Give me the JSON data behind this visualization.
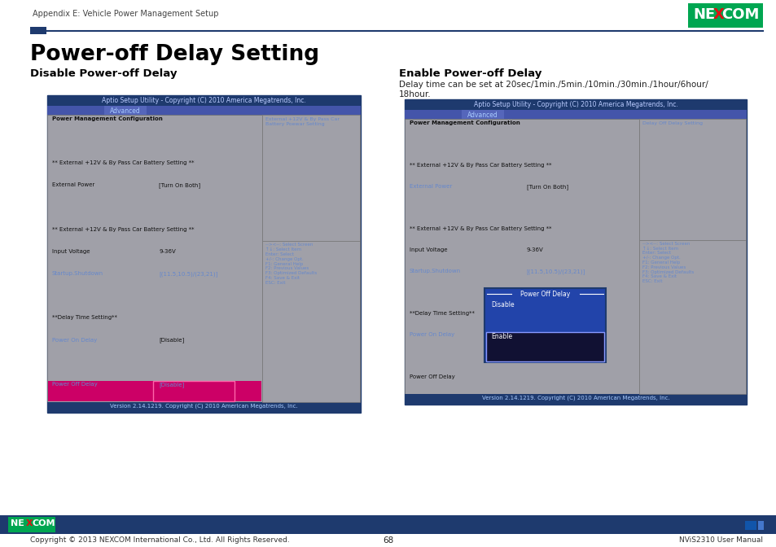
{
  "page_header": "Appendix E: Vehicle Power Management Setup",
  "main_title": "Power-off Delay Setting",
  "left_subtitle": "Disable Power-off Delay",
  "right_subtitle": "Enable Power-off Delay",
  "right_desc": "Delay time can be set at 20sec/1min./5min./10min./30min./1hour/6hour/\n18hour.",
  "bios_title": "Aptio Setup Utility - Copyright (C) 2010 America Megatrends, Inc.",
  "bios_tab": "Advanced",
  "bios_version": "Version 2.14.1219. Copyright (C) 2010 American Megatrends, Inc.",
  "left_screen": {
    "right_panel_top": "External +12V & By Pass Car\nBattery Poewar Setting",
    "right_panel_bottom": "--><--: Select Screen\n↑↓: Select Item\nEnter: Select\n+/-: Change Opt.\nF1: General Help\nF2: Previous Values\nF3: Optimized Defaults\nF4: Save & Exit\nESC: Exit",
    "content_rows": [
      {
        "label": "Power Management Configuration",
        "value": "",
        "label_color": "black",
        "value_color": "black",
        "bold": true,
        "gap_after": false
      },
      {
        "label": "",
        "value": "",
        "label_color": "black",
        "value_color": "black",
        "bold": false,
        "gap_after": false
      },
      {
        "label": "** External +12V & By Pass Car Battery Setting **",
        "value": "",
        "label_color": "black",
        "value_color": "black",
        "bold": false,
        "gap_after": false
      },
      {
        "label": "External Power",
        "value": "[Turn On Both]",
        "label_color": "black",
        "value_color": "black",
        "bold": false,
        "gap_after": false
      },
      {
        "label": "",
        "value": "",
        "label_color": "black",
        "value_color": "black",
        "bold": false,
        "gap_after": false
      },
      {
        "label": "** External +12V & By Pass Car Battery Setting **",
        "value": "",
        "label_color": "black",
        "value_color": "black",
        "bold": false,
        "gap_after": false
      },
      {
        "label": "Input Voltage",
        "value": "9-36V",
        "label_color": "black",
        "value_color": "black",
        "bold": false,
        "gap_after": false
      },
      {
        "label": "Startup.Shutdown",
        "value": "[(11.5,10.5)/(23,21)]",
        "label_color": "blue",
        "value_color": "blue",
        "bold": false,
        "gap_after": false
      },
      {
        "label": "",
        "value": "",
        "label_color": "black",
        "value_color": "black",
        "bold": false,
        "gap_after": false
      },
      {
        "label": "**Delay Time Setting**",
        "value": "",
        "label_color": "black",
        "value_color": "black",
        "bold": false,
        "gap_after": false
      },
      {
        "label": "Power On Delay",
        "value": "[Disable]",
        "label_color": "blue",
        "value_color": "black",
        "bold": false,
        "gap_after": false
      },
      {
        "label": "",
        "value": "",
        "label_color": "black",
        "value_color": "black",
        "bold": false,
        "gap_after": false
      },
      {
        "label": "Power Off Delay",
        "value": "[Disable]",
        "label_color": "blue",
        "value_color": "blue",
        "bold": false,
        "gap_after": false,
        "highlighted": true
      }
    ]
  },
  "right_screen": {
    "right_panel_top": "Delay Off Delay Setting",
    "right_panel_bottom": "--><--: Select Screen\n↑↓: Select Item\nEnter: Select\n+/-: Change Opt.\nF1: General Help\nF2: Previous Values\nF3: Optimized Defaults\nF4: Save & Exit\nESC: Exit",
    "content_rows": [
      {
        "label": "Power Management Configuration",
        "value": "",
        "label_color": "black",
        "value_color": "black",
        "bold": true
      },
      {
        "label": "",
        "value": "",
        "label_color": "black",
        "value_color": "black",
        "bold": false
      },
      {
        "label": "** External +12V & By Pass Car Battery Setting **",
        "value": "",
        "label_color": "black",
        "value_color": "black",
        "bold": false
      },
      {
        "label": "External Power",
        "value": "[Turn On Both]",
        "label_color": "blue",
        "value_color": "black",
        "bold": false
      },
      {
        "label": "",
        "value": "",
        "label_color": "black",
        "value_color": "black",
        "bold": false
      },
      {
        "label": "** External +12V & By Pass Car Battery Setting **",
        "value": "",
        "label_color": "black",
        "value_color": "black",
        "bold": false
      },
      {
        "label": "Input Voltage",
        "value": "9-36V",
        "label_color": "black",
        "value_color": "black",
        "bold": false
      },
      {
        "label": "Startup.Shutdown",
        "value": "[(11.5,10.5)/(23,21)]",
        "label_color": "blue",
        "value_color": "blue",
        "bold": false
      },
      {
        "label": "",
        "value": "",
        "label_color": "black",
        "value_color": "black",
        "bold": false
      },
      {
        "label": "**Delay Time Setting**",
        "value": "",
        "label_color": "black",
        "value_color": "black",
        "bold": false
      },
      {
        "label": "Power On Delay",
        "value": "",
        "label_color": "blue",
        "value_color": "black",
        "bold": false
      },
      {
        "label": "",
        "value": "",
        "label_color": "black",
        "value_color": "black",
        "bold": false
      },
      {
        "label": "Power Off Delay",
        "value": "",
        "label_color": "black",
        "value_color": "black",
        "bold": false
      }
    ],
    "popup": {
      "title": "Power Off Delay",
      "options": [
        "Disable",
        "Enable"
      ],
      "selected": 1,
      "row_index": 10
    }
  },
  "dark_blue": "#1e3a6e",
  "med_blue": "#4455aa",
  "tab_blue": "#5566bb",
  "bg_gray": "#a0a0a8",
  "text_blue_light": "#6688cc",
  "text_black": "#111111",
  "nexcom_green": "#00a651",
  "footer_blue": "#1e3a6e",
  "page_number": "68",
  "footer_left": "Copyright © 2013 NEXCOM International Co., Ltd. All Rights Reserved.",
  "footer_right": "NViS2310 User Manual"
}
